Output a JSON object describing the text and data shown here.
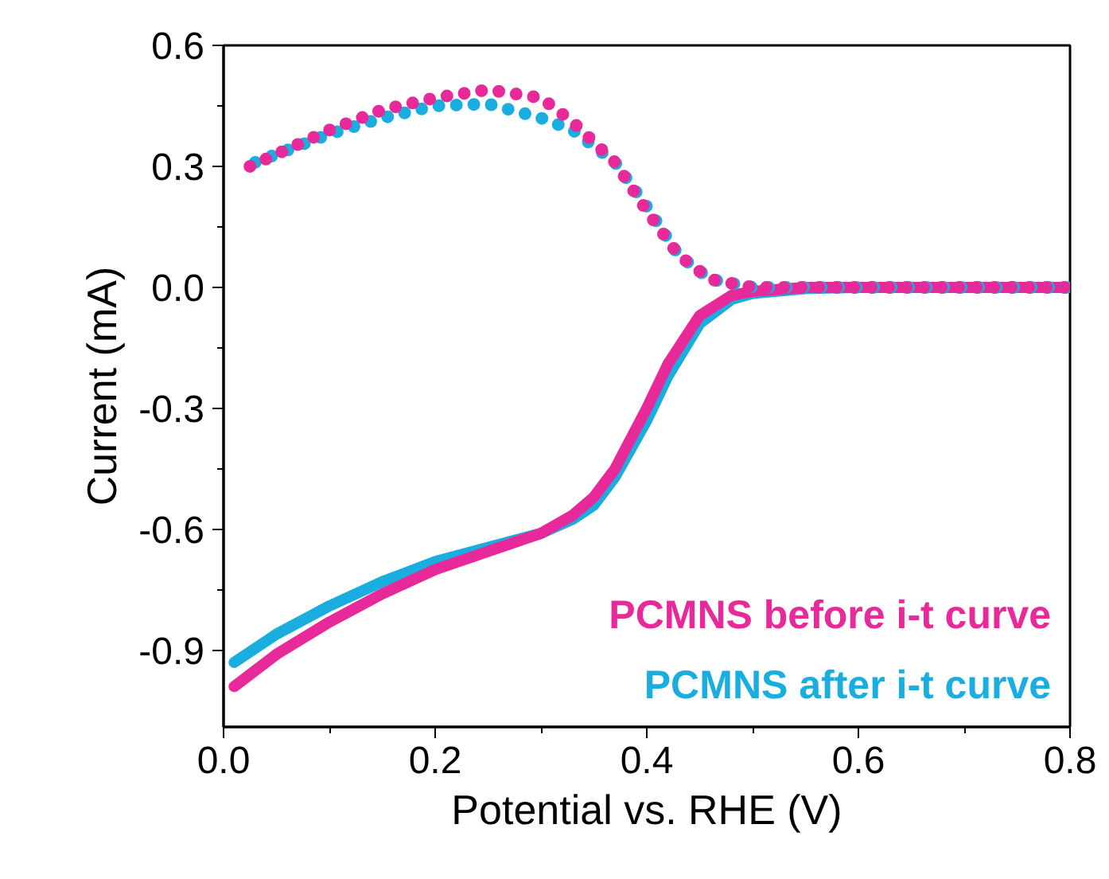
{
  "chart_data": {
    "type": "line",
    "xlabel": "Potential vs. RHE (V)",
    "ylabel": "Current (mA)",
    "xlim": [
      0,
      0.8
    ],
    "ylim": [
      -1.09,
      0.6
    ],
    "xticks": [
      {
        "value": 0,
        "label": "0.0"
      },
      {
        "value": 0.2,
        "label": "0.2"
      },
      {
        "value": 0.4,
        "label": "0.4"
      },
      {
        "value": 0.6,
        "label": "0.6"
      },
      {
        "value": 0.8,
        "label": "0.8"
      }
    ],
    "yticks": [
      {
        "value": 0.6,
        "label": "0.6"
      },
      {
        "value": 0.3,
        "label": "0.3"
      },
      {
        "value": 0,
        "label": "0.0"
      },
      {
        "value": -0.3,
        "label": "-0.3"
      },
      {
        "value": -0.6,
        "label": "-0.6"
      },
      {
        "value": -0.9,
        "label": "-0.9"
      }
    ],
    "grid": false,
    "legend": "bottom right",
    "series": [
      {
        "name": "PCMNS after i-t curve",
        "color": "#1aaee0",
        "line_style": "solid",
        "x": [
          0.01,
          0.05,
          0.1,
          0.15,
          0.2,
          0.25,
          0.3,
          0.33,
          0.35,
          0.37,
          0.4,
          0.42,
          0.45,
          0.48,
          0.5,
          0.55,
          0.6,
          0.7,
          0.8
        ],
        "values": [
          -0.93,
          -0.86,
          -0.79,
          -0.73,
          -0.68,
          -0.645,
          -0.61,
          -0.575,
          -0.54,
          -0.47,
          -0.33,
          -0.22,
          -0.09,
          -0.03,
          -0.015,
          -0.003,
          0,
          0,
          0
        ]
      },
      {
        "name": "PCMNS before i-t curve",
        "color": "#e8299a",
        "line_style": "solid",
        "x": [
          0.01,
          0.05,
          0.1,
          0.15,
          0.2,
          0.25,
          0.3,
          0.33,
          0.35,
          0.37,
          0.4,
          0.42,
          0.45,
          0.48,
          0.5,
          0.55,
          0.6,
          0.7,
          0.8
        ],
        "values": [
          -0.99,
          -0.91,
          -0.83,
          -0.76,
          -0.7,
          -0.655,
          -0.61,
          -0.565,
          -0.52,
          -0.45,
          -0.3,
          -0.19,
          -0.07,
          -0.02,
          -0.01,
          0,
          0,
          0,
          0
        ]
      },
      {
        "color": "#1aaee0",
        "line_style": "dotted",
        "x": [
          0.03,
          0.1,
          0.15,
          0.2,
          0.25,
          0.3,
          0.33,
          0.35,
          0.37,
          0.4,
          0.43,
          0.46,
          0.5,
          0.6,
          0.7,
          0.8
        ],
        "values": [
          0.31,
          0.38,
          0.42,
          0.45,
          0.455,
          0.42,
          0.39,
          0.35,
          0.31,
          0.2,
          0.08,
          0.02,
          0,
          0,
          0,
          0
        ]
      },
      {
        "color": "#e8299a",
        "line_style": "dotted",
        "x": [
          0.025,
          0.05,
          0.1,
          0.15,
          0.2,
          0.25,
          0.3,
          0.33,
          0.35,
          0.37,
          0.4,
          0.43,
          0.46,
          0.5,
          0.6,
          0.7,
          0.8
        ],
        "values": [
          0.3,
          0.33,
          0.39,
          0.44,
          0.47,
          0.49,
          0.47,
          0.41,
          0.36,
          0.31,
          0.19,
          0.08,
          0.02,
          0,
          0,
          0,
          0
        ]
      }
    ]
  }
}
